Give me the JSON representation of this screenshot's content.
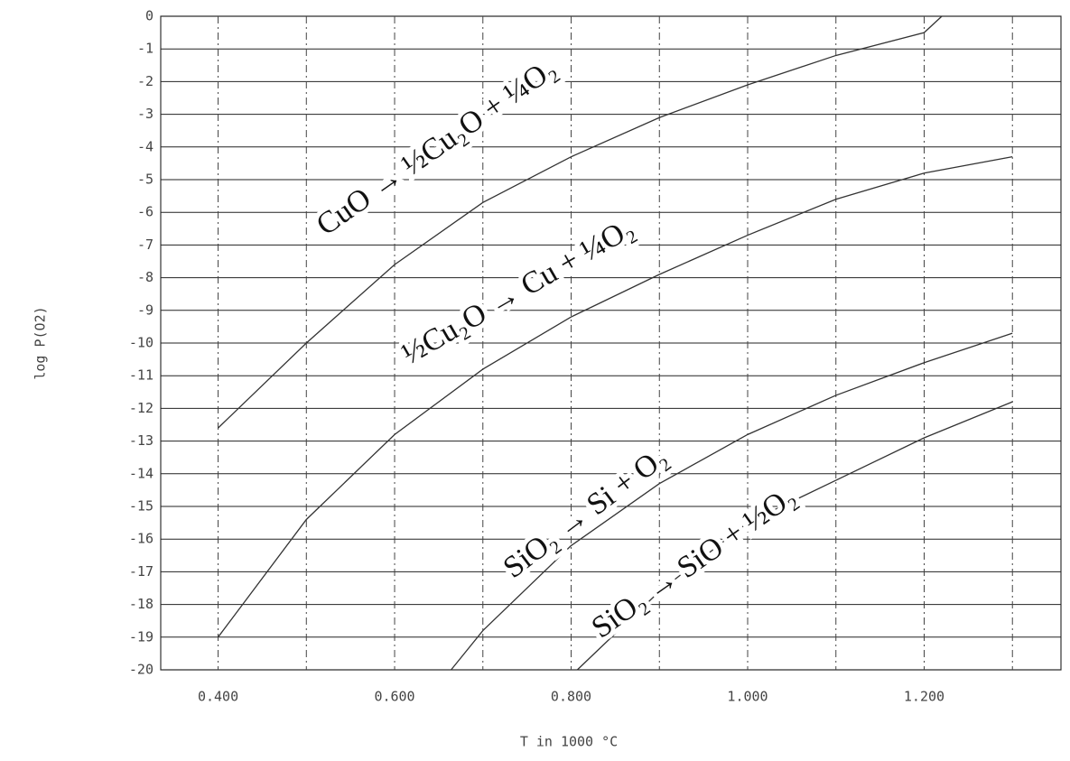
{
  "chart_data": {
    "type": "line",
    "x_label": "T in 1000 °C",
    "y_label": "log P(O2)",
    "xlim": [
      0.335,
      1.355
    ],
    "ylim": [
      -20,
      0
    ],
    "xticks": [
      {
        "value": 0.4,
        "label": "0.400"
      },
      {
        "value": 0.5,
        "label": null
      },
      {
        "value": 0.6,
        "label": "0.600"
      },
      {
        "value": 0.7,
        "label": null
      },
      {
        "value": 0.8,
        "label": "0.800"
      },
      {
        "value": 0.9,
        "label": null
      },
      {
        "value": 1.0,
        "label": "1.000"
      },
      {
        "value": 1.1,
        "label": null
      },
      {
        "value": 1.2,
        "label": "1.200"
      },
      {
        "value": 1.3,
        "label": null
      }
    ],
    "yticks": [
      0,
      -1,
      -2,
      -3,
      -4,
      -5,
      -6,
      -7,
      -8,
      -9,
      -10,
      -11,
      -12,
      -13,
      -14,
      -15,
      -16,
      -17,
      -18,
      -19,
      -20
    ],
    "grid": true,
    "series": [
      {
        "name": "CuO → ½Cu₂O + ¼O₂",
        "color": "#333333",
        "x": [
          0.4,
          0.5,
          0.6,
          0.7,
          0.8,
          0.9,
          1.0,
          1.1,
          1.2,
          1.22
        ],
        "values": [
          -12.6,
          -10,
          -7.6,
          -5.7,
          -4.3,
          -3.1,
          -2.1,
          -1.2,
          -0.5,
          0
        ]
      },
      {
        "name": "½Cu₂O → Cu + ¼O₂",
        "color": "#333333",
        "x": [
          0.4,
          0.5,
          0.6,
          0.7,
          0.8,
          0.9,
          1.0,
          1.1,
          1.2,
          1.3
        ],
        "values": [
          -19,
          -15.4,
          -12.8,
          -10.8,
          -9.2,
          -7.9,
          -6.7,
          -5.6,
          -4.8,
          -4.3
        ]
      },
      {
        "name": "SiO₂ → Si + O₂",
        "color": "#333333",
        "x": [
          0.664,
          0.7,
          0.8,
          0.9,
          1.0,
          1.1,
          1.2,
          1.3
        ],
        "values": [
          -20,
          -18.8,
          -16.2,
          -14.3,
          -12.8,
          -11.6,
          -10.6,
          -9.7
        ]
      },
      {
        "name": "SiO₂ → SiO + ½O₂",
        "color": "#333333",
        "x": [
          0.807,
          0.9,
          1.0,
          1.1,
          1.2,
          1.3
        ],
        "values": [
          -20,
          -17.6,
          -15.5,
          -14.2,
          -12.9,
          -11.8
        ]
      }
    ]
  }
}
